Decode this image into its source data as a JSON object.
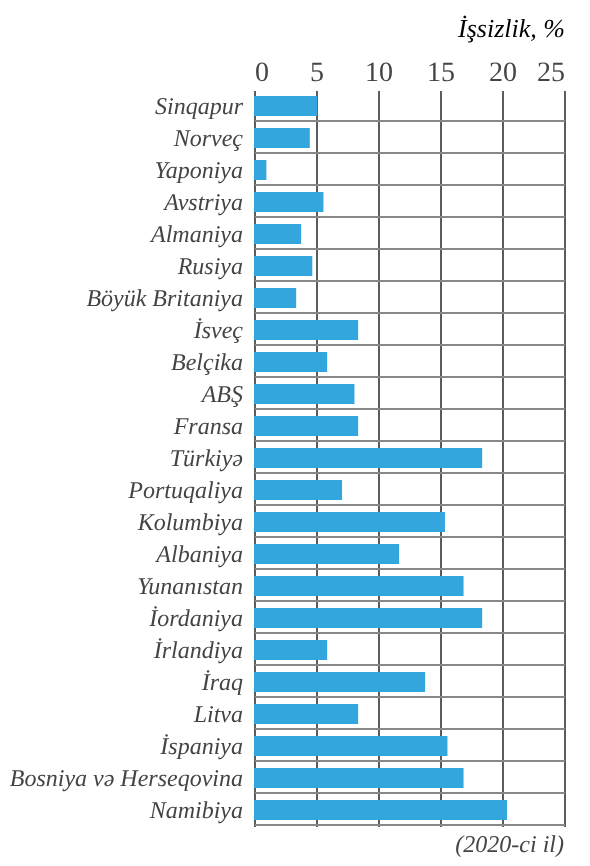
{
  "chart_data": {
    "type": "bar",
    "orientation": "horizontal",
    "xlabel": "İşsizlik, %",
    "categories": [
      "Sinqapur",
      "Norveç",
      "Yaponiya",
      "Avstriya",
      "Almaniya",
      "Rusiya",
      "Böyük Britaniya",
      "İsveç",
      "Belçika",
      "ABŞ",
      "Fransa",
      "Türkiyə",
      "Portuqaliya",
      "Kolumbiya",
      "Albaniya",
      "Yunanıstan",
      "İordaniya",
      "İrlandiya",
      "İraq",
      "Litva",
      "İspaniya",
      "Bosniya və Herseqovina",
      "Namibiya"
    ],
    "values": [
      5.1,
      4.5,
      1.0,
      5.6,
      3.8,
      4.7,
      3.4,
      8.4,
      5.9,
      8.1,
      8.4,
      18.4,
      7.1,
      15.4,
      11.7,
      16.9,
      18.4,
      5.9,
      13.8,
      8.4,
      15.6,
      16.9,
      20.4
    ],
    "color": "#33a6de",
    "xlim": [
      0,
      25
    ],
    "xticks": [
      0,
      5,
      10,
      15,
      20,
      25
    ],
    "grid": true,
    "annotations": [
      "(2020-ci il)"
    ]
  }
}
